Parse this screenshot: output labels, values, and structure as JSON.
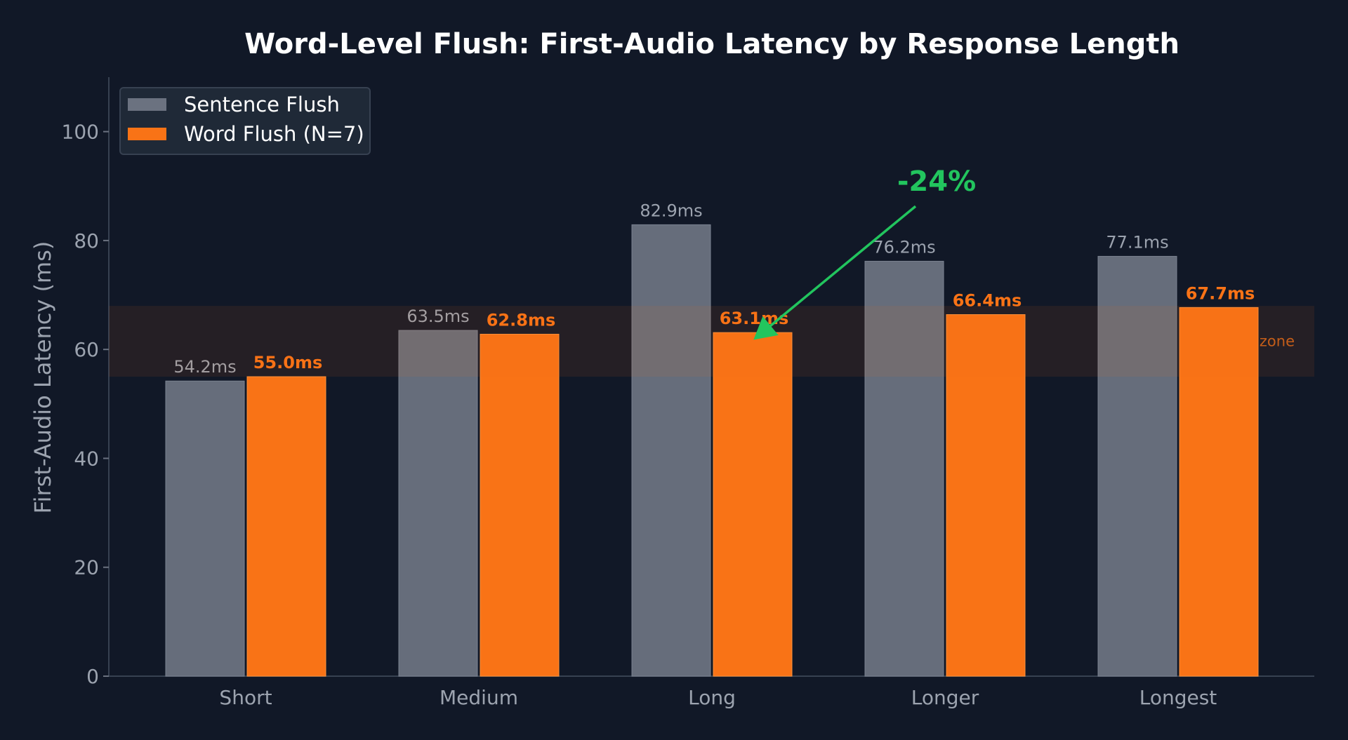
{
  "chart_data": {
    "type": "bar",
    "title": "Word-Level Flush: First-Audio Latency by Response Length",
    "xlabel": "",
    "ylabel": "First-Audio Latency (ms)",
    "ylim": [
      0,
      110
    ],
    "yticks": [
      0,
      20,
      40,
      60,
      80,
      100
    ],
    "categories": [
      "Short",
      "Medium",
      "Long",
      "Longer",
      "Longest"
    ],
    "series": [
      {
        "name": "Sentence Flush",
        "color": "#6b7280",
        "values": [
          54.2,
          63.5,
          82.9,
          76.2,
          77.1
        ],
        "labels": [
          "54.2ms",
          "63.5ms",
          "82.9ms",
          "76.2ms",
          "77.1ms"
        ]
      },
      {
        "name": "Word Flush (N=7)",
        "color": "#f97316",
        "values": [
          55.0,
          62.8,
          63.1,
          66.4,
          67.7
        ],
        "labels": [
          "55.0ms",
          "62.8ms",
          "63.1ms",
          "66.4ms",
          "67.7ms"
        ]
      }
    ],
    "band": {
      "y_range": [
        55,
        68
      ],
      "label": "zone",
      "color": "#f97316"
    },
    "annotation": {
      "text": "-24%",
      "category": "Long",
      "color": "#22c55e"
    },
    "legend_position": "top-left",
    "grid": false
  }
}
